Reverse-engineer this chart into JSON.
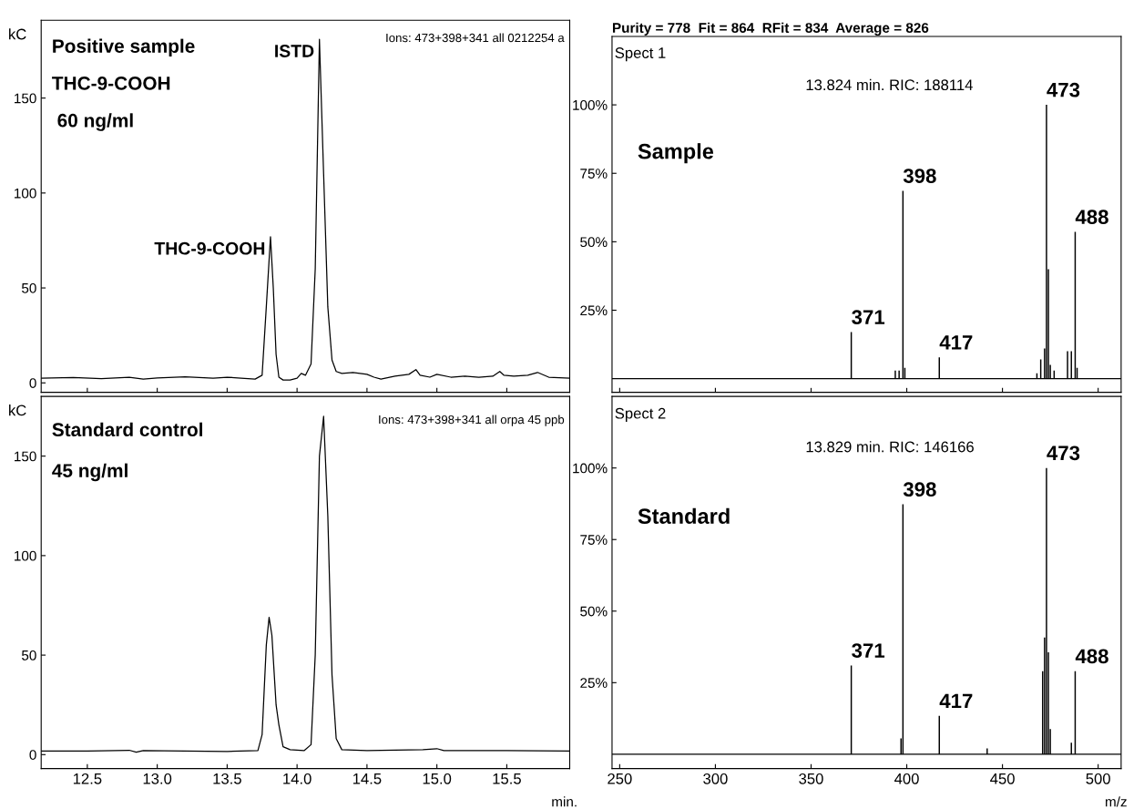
{
  "chart_data": [
    {
      "type": "line",
      "ylabel": "kC",
      "color": "#000000",
      "xlim": [
        12.17,
        15.95
      ],
      "ylim": [
        -5,
        191
      ],
      "tick_labels": "y",
      "xticks": [
        {
          "value": 12.5,
          "label": null
        },
        {
          "value": 13,
          "label": null
        },
        {
          "value": 13.5,
          "label": null
        },
        {
          "value": 14,
          "label": null
        },
        {
          "value": 14.5,
          "label": null
        },
        {
          "value": 15,
          "label": null
        },
        {
          "value": 15.5,
          "label": null
        }
      ],
      "yticks": [
        0,
        50,
        100,
        150
      ],
      "x": [
        12.17,
        12.4,
        12.6,
        12.8,
        12.9,
        13.0,
        13.2,
        13.4,
        13.5,
        13.6,
        13.7,
        13.75,
        13.78,
        13.81,
        13.83,
        13.85,
        13.87,
        13.9,
        13.95,
        14.0,
        14.03,
        14.06,
        14.1,
        14.13,
        14.16,
        14.19,
        14.22,
        14.25,
        14.28,
        14.32,
        14.4,
        14.5,
        14.55,
        14.6,
        14.7,
        14.8,
        14.85,
        14.88,
        14.95,
        15.0,
        15.1,
        15.2,
        15.3,
        15.4,
        15.45,
        15.48,
        15.55,
        15.65,
        15.72,
        15.8,
        15.95
      ],
      "values": [
        2.5,
        2.8,
        2.2,
        3.0,
        2.0,
        2.6,
        3.2,
        2.5,
        3.0,
        2.5,
        2.0,
        4,
        40,
        77,
        50,
        15,
        3,
        1.5,
        1.5,
        2.5,
        5,
        4,
        10,
        60,
        181,
        110,
        40,
        12,
        6,
        5,
        5.5,
        4.5,
        3,
        2,
        3.5,
        4.5,
        7,
        4,
        3,
        4.5,
        3,
        3.5,
        3,
        3.5,
        6,
        4,
        3.5,
        4,
        5.5,
        3,
        2.5
      ],
      "annotations": [
        "Positive sample",
        "THC-9-COOH",
        "60 ng/ml",
        "Ions: 473+398+341 all 0212254 a",
        {
          "text": "ISTD",
          "x": 14.16,
          "y": 181
        },
        {
          "text": "THC-9-COOH",
          "x": 13.81,
          "y": 77
        }
      ]
    },
    {
      "type": "line",
      "ylabel": "kC",
      "xlabel": "min.",
      "color": "#000000",
      "xlim": [
        12.17,
        15.95
      ],
      "ylim": [
        -7,
        180
      ],
      "xticks": [
        {
          "value": 12.5,
          "label": "12.5"
        },
        {
          "value": 13,
          "label": "13.0"
        },
        {
          "value": 13.5,
          "label": "13.5"
        },
        {
          "value": 14,
          "label": "14.0"
        },
        {
          "value": 14.5,
          "label": "14.5"
        },
        {
          "value": 15,
          "label": "15.0"
        },
        {
          "value": 15.5,
          "label": "15.5"
        }
      ],
      "yticks": [
        0,
        50,
        100,
        150
      ],
      "x": [
        12.17,
        12.5,
        12.8,
        12.85,
        12.9,
        13.2,
        13.5,
        13.72,
        13.75,
        13.78,
        13.8,
        13.82,
        13.85,
        13.87,
        13.9,
        13.95,
        14.05,
        14.1,
        14.13,
        14.16,
        14.19,
        14.22,
        14.25,
        14.28,
        14.32,
        14.5,
        14.9,
        15.0,
        15.05,
        15.5,
        15.95
      ],
      "values": [
        1.8,
        1.8,
        2.2,
        1.2,
        2.0,
        1.8,
        1.6,
        2,
        10,
        55,
        69,
        60,
        25,
        15,
        4,
        2.5,
        2,
        5,
        50,
        150,
        170,
        120,
        40,
        8,
        2.5,
        2,
        2.5,
        3,
        2,
        2,
        1.8
      ],
      "annotations": [
        "Standard control",
        "45 ng/ml",
        "Ions: 473+398+341 all orpa 45 ppb"
      ]
    },
    {
      "type": "bar",
      "title": "Purity = 778  Fit = 864  RFit = 834  Average = 826",
      "color": "#000000",
      "xlim": [
        246,
        512
      ],
      "ylim": [
        -5,
        125
      ],
      "tick_labels": "y",
      "xticks": [
        250,
        300,
        350,
        400,
        450,
        500
      ],
      "yticks": [
        {
          "value": 25,
          "label": "25%"
        },
        {
          "value": 50,
          "label": "50%"
        },
        {
          "value": 75,
          "label": "75%"
        },
        {
          "value": 100,
          "label": "100%"
        }
      ],
      "x": [
        371,
        394,
        396,
        398,
        399,
        417,
        468,
        470,
        472,
        473,
        474,
        475,
        477,
        484,
        486,
        488,
        489
      ],
      "values": [
        17,
        3,
        3,
        68.6,
        4,
        7.8,
        2,
        7,
        11,
        100,
        40,
        5,
        3,
        10,
        10,
        53.6,
        4
      ],
      "annotations": [
        "Spect 1",
        "13.824 min. RIC: 188114",
        "Sample",
        {
          "text": "371",
          "x": 371,
          "y": 17
        },
        {
          "text": "398",
          "x": 398,
          "y": 68.6
        },
        {
          "text": "417",
          "x": 417,
          "y": 7.8
        },
        {
          "text": "473",
          "x": 473,
          "y": 100
        },
        {
          "text": "488",
          "x": 488,
          "y": 53.6
        }
      ]
    },
    {
      "type": "bar",
      "xlabel": "m/z",
      "color": "#000000",
      "xlim": [
        246,
        512
      ],
      "ylim": [
        -5,
        125
      ],
      "xticks": [
        250,
        300,
        350,
        400,
        450,
        500
      ],
      "yticks": [
        {
          "value": 25,
          "label": "25%"
        },
        {
          "value": 50,
          "label": "50%"
        },
        {
          "value": 75,
          "label": "75%"
        },
        {
          "value": 100,
          "label": "100%"
        }
      ],
      "x": [
        371,
        397,
        398,
        417,
        442,
        471,
        472,
        473,
        474,
        475,
        486,
        488
      ],
      "values": [
        31,
        5.5,
        87.3,
        13.4,
        2,
        29,
        40.8,
        100,
        35.6,
        8.8,
        4,
        29
      ],
      "annotations": [
        "Spect 2",
        "13.829 min. RIC: 146166",
        "Standard",
        {
          "text": "371",
          "x": 371,
          "y": 31
        },
        {
          "text": "398",
          "x": 398,
          "y": 87.3
        },
        {
          "text": "417",
          "x": 417,
          "y": 13.4
        },
        {
          "text": "473",
          "x": 473,
          "y": 100
        },
        {
          "text": "488",
          "x": 488,
          "y": 29
        }
      ]
    }
  ]
}
